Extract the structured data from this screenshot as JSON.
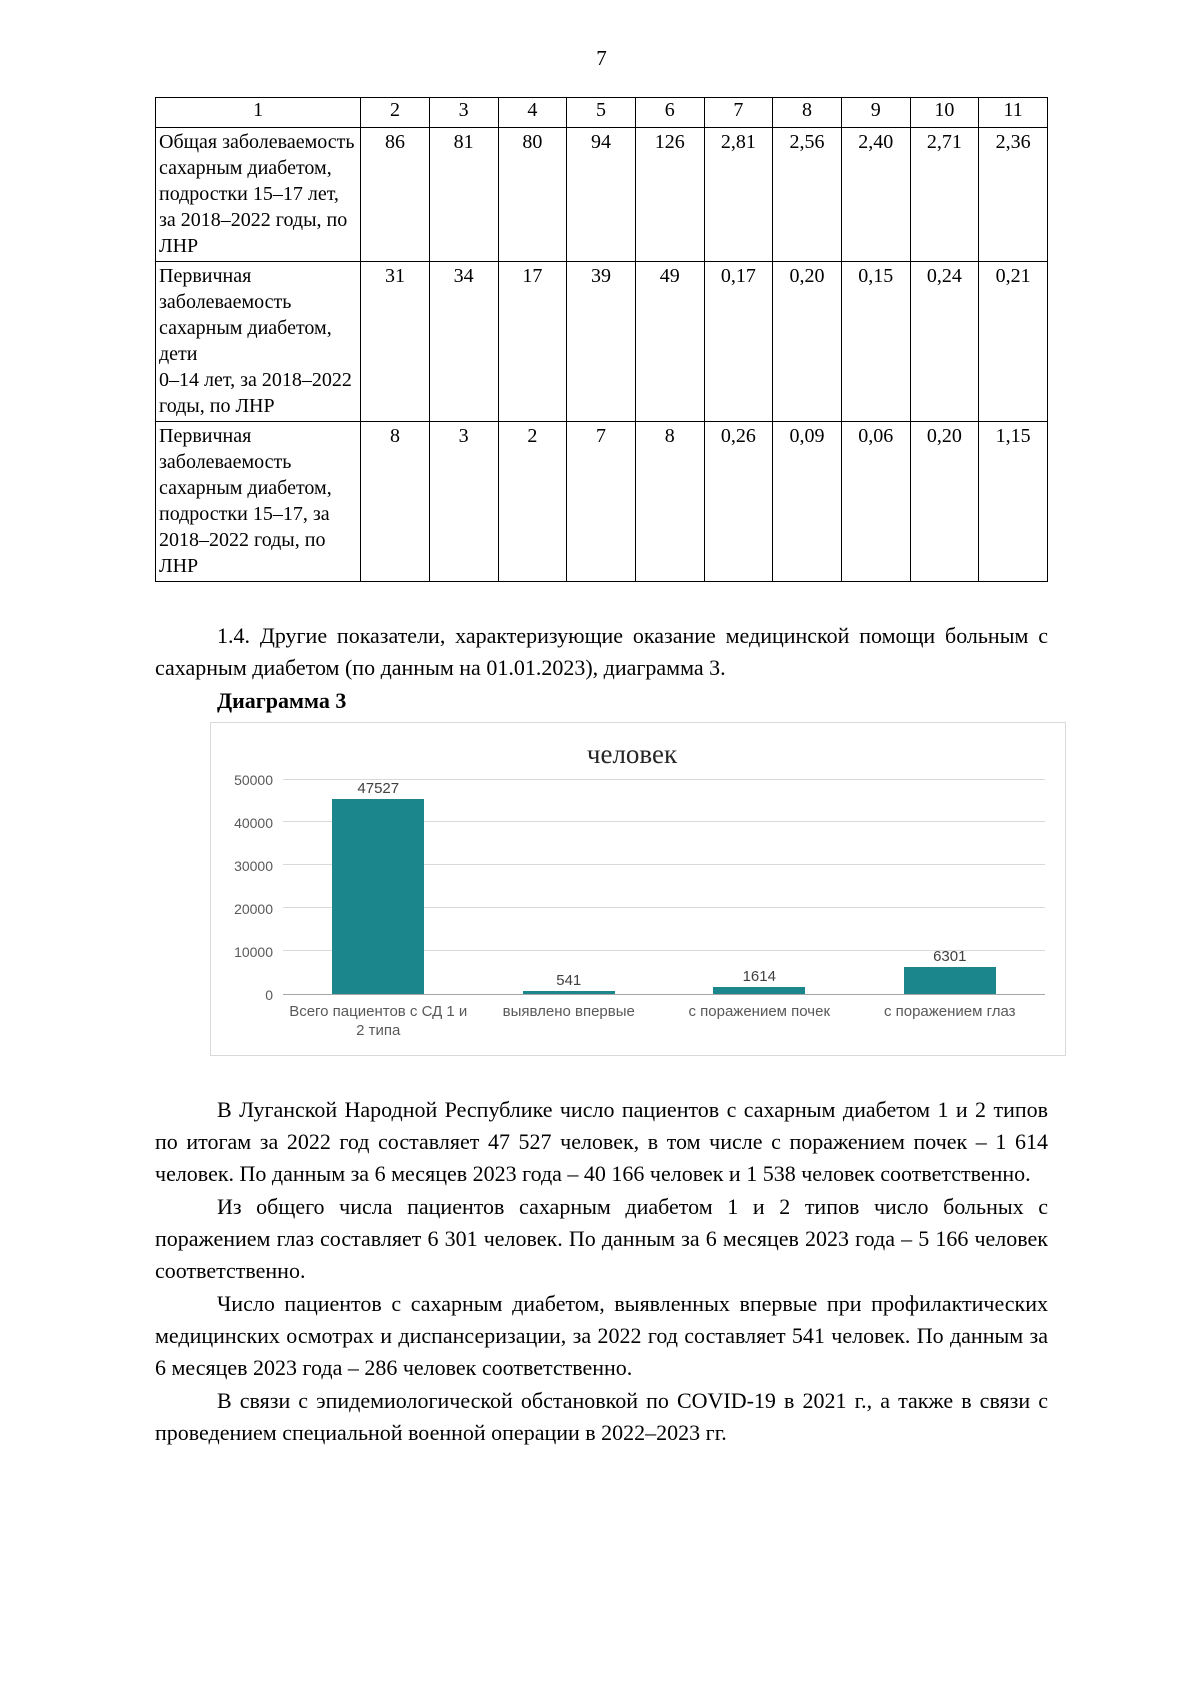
{
  "page": {
    "number": "7"
  },
  "table": {
    "header": [
      "1",
      "2",
      "3",
      "4",
      "5",
      "6",
      "7",
      "8",
      "9",
      "10",
      "11"
    ],
    "rows": [
      {
        "label": "Общая заболеваемость сахарным диабетом, подростки 15–17 лет, за 2018–2022 годы, по ЛНР",
        "values": [
          "86",
          "81",
          "80",
          "94",
          "126",
          "2,81",
          "2,56",
          "2,40",
          "2,71",
          "2,36"
        ]
      },
      {
        "label": "Первичная заболеваемость сахарным диабетом, дети\n0–14 лет, за 2018–2022 годы, по ЛНР",
        "values": [
          "31",
          "34",
          "17",
          "39",
          "49",
          "0,17",
          "0,20",
          "0,15",
          "0,24",
          "0,21"
        ]
      },
      {
        "label": "Первичная заболеваемость сахарным диабетом, подростки 15–17, за 2018–2022 годы, по ЛНР",
        "values": [
          "8",
          "3",
          "2",
          "7",
          "8",
          "0,26",
          "0,09",
          "0,06",
          "0,20",
          "1,15"
        ]
      }
    ]
  },
  "section": {
    "intro": "1.4. Другие показатели, характеризующие оказание медицинской помощи больным с сахарным диабетом (по данным на 01.01.2023), диаграмма 3.",
    "diagram_label": "Диаграмма 3"
  },
  "chart_data": {
    "type": "bar",
    "title": "человек",
    "categories": [
      "Всего пациентов с СД 1 и 2 типа",
      "выявлено впервые",
      "с поражением почек",
      "с поражением глаз"
    ],
    "values": [
      47527,
      541,
      1614,
      6301
    ],
    "value_labels": [
      "47527",
      "541",
      "1614",
      "6301"
    ],
    "xlabel": "",
    "ylabel": "",
    "ylim": [
      0,
      50000
    ],
    "yticks": [
      0,
      10000,
      20000,
      30000,
      40000,
      50000
    ],
    "ytick_labels": [
      "0",
      "10000",
      "20000",
      "30000",
      "40000",
      "50000"
    ],
    "bar_color": "#1b868c",
    "grid": true,
    "legend_position": "none"
  },
  "paragraphs": [
    "В Луганской Народной Республике число пациентов с сахарным диабетом 1 и 2 типов по итогам за 2022 год составляет 47 527 человек, в том числе с поражением почек – 1 614 человек. По данным за 6 месяцев 2023 года – 40 166 человек и 1 538 человек соответственно.",
    "Из общего числа пациентов сахарным диабетом 1 и 2 типов число больных с поражением глаз составляет 6 301 человек. По данным за 6 месяцев 2023 года – 5 166 человек соответственно.",
    "Число пациентов с сахарным диабетом, выявленных впервые при профилактических медицинских осмотрах и диспансеризации, за 2022 год составляет 541 человек. По данным за 6 месяцев 2023 года – 286 человек соответственно.",
    "В связи с эпидемиологической обстановкой по COVID-19 в 2021 г., а также в связи с проведением специальной военной операции в 2022–2023 гг."
  ]
}
